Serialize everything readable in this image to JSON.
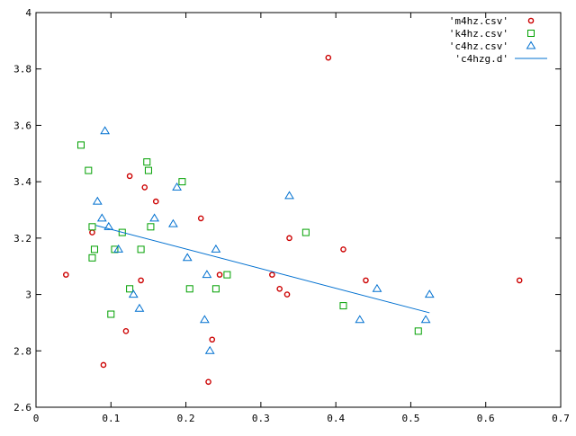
{
  "chart_data": {
    "type": "scatter",
    "title": "",
    "xlabel": "",
    "ylabel": "",
    "xlim": [
      0,
      0.7
    ],
    "ylim": [
      2.6,
      4.0
    ],
    "x_ticks": [
      0,
      0.1,
      0.2,
      0.3,
      0.4,
      0.5,
      0.6,
      0.7
    ],
    "y_ticks": [
      2.6,
      2.8,
      3.0,
      3.2,
      3.4,
      3.6,
      3.8,
      4.0
    ],
    "x_tick_labels": [
      "0",
      "0.1",
      "0.2",
      "0.3",
      "0.4",
      "0.5",
      "0.6",
      "0.7"
    ],
    "y_tick_labels": [
      "2.6",
      "2.8",
      "3",
      "3.2",
      "3.4",
      "3.6",
      "3.8",
      "4"
    ],
    "grid": false,
    "legend_position": "top-right",
    "series": [
      {
        "name": "'m4hz.csv'",
        "marker": "circle",
        "color": "#cc0000",
        "points": [
          [
            0.04,
            3.07
          ],
          [
            0.075,
            3.22
          ],
          [
            0.09,
            2.75
          ],
          [
            0.12,
            2.87
          ],
          [
            0.125,
            3.42
          ],
          [
            0.14,
            3.05
          ],
          [
            0.145,
            3.38
          ],
          [
            0.16,
            3.33
          ],
          [
            0.22,
            3.27
          ],
          [
            0.23,
            2.69
          ],
          [
            0.235,
            2.84
          ],
          [
            0.245,
            3.07
          ],
          [
            0.315,
            3.07
          ],
          [
            0.325,
            3.02
          ],
          [
            0.335,
            3.0
          ],
          [
            0.338,
            3.2
          ],
          [
            0.39,
            3.84
          ],
          [
            0.41,
            3.16
          ],
          [
            0.44,
            3.05
          ],
          [
            0.645,
            3.05
          ]
        ]
      },
      {
        "name": "'k4hz.csv'",
        "marker": "square",
        "color": "#00a000",
        "points": [
          [
            0.06,
            3.53
          ],
          [
            0.07,
            3.44
          ],
          [
            0.075,
            3.13
          ],
          [
            0.075,
            3.24
          ],
          [
            0.078,
            3.16
          ],
          [
            0.1,
            2.93
          ],
          [
            0.105,
            3.16
          ],
          [
            0.115,
            3.22
          ],
          [
            0.125,
            3.02
          ],
          [
            0.14,
            3.16
          ],
          [
            0.148,
            3.47
          ],
          [
            0.15,
            3.44
          ],
          [
            0.153,
            3.24
          ],
          [
            0.195,
            3.4
          ],
          [
            0.205,
            3.02
          ],
          [
            0.24,
            3.02
          ],
          [
            0.255,
            3.07
          ],
          [
            0.36,
            3.22
          ],
          [
            0.41,
            2.96
          ],
          [
            0.51,
            2.87
          ]
        ]
      },
      {
        "name": "'c4hz.csv'",
        "marker": "triangle",
        "color": "#0070d0",
        "points": [
          [
            0.082,
            3.33
          ],
          [
            0.088,
            3.27
          ],
          [
            0.092,
            3.58
          ],
          [
            0.097,
            3.24
          ],
          [
            0.11,
            3.16
          ],
          [
            0.13,
            3.0
          ],
          [
            0.138,
            2.95
          ],
          [
            0.158,
            3.27
          ],
          [
            0.183,
            3.25
          ],
          [
            0.188,
            3.38
          ],
          [
            0.202,
            3.13
          ],
          [
            0.225,
            2.91
          ],
          [
            0.228,
            3.07
          ],
          [
            0.232,
            2.8
          ],
          [
            0.24,
            3.16
          ],
          [
            0.338,
            3.35
          ],
          [
            0.432,
            2.91
          ],
          [
            0.455,
            3.02
          ],
          [
            0.52,
            2.91
          ],
          [
            0.525,
            3.0
          ]
        ]
      },
      {
        "name": "'c4hzg.d'",
        "marker": "line",
        "color": "#0070d0",
        "points": [
          [
            0.08,
            3.245
          ],
          [
            0.525,
            2.935
          ]
        ]
      }
    ]
  }
}
